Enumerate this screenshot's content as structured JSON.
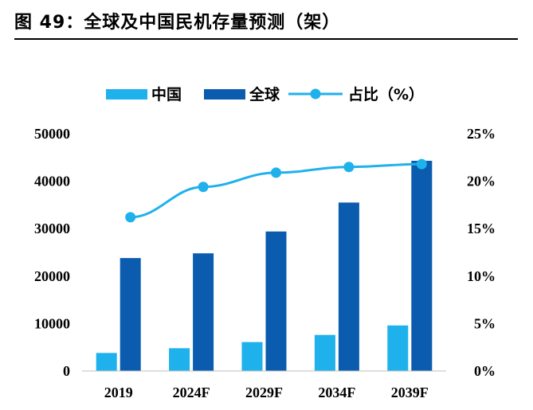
{
  "title": "图 49：全球及中国民机存量预测（架）",
  "chart_data": {
    "type": "bar",
    "categories": [
      "2019",
      "2024F",
      "2029F",
      "2034F",
      "2039F"
    ],
    "series": [
      {
        "name": "中国",
        "type": "bar",
        "axis": "left",
        "color": "#1fb1ec",
        "values": [
          3800,
          4800,
          6100,
          7600,
          9600
        ]
      },
      {
        "name": "全球",
        "type": "bar",
        "axis": "left",
        "color": "#0b5cae",
        "values": [
          23800,
          24800,
          29400,
          35500,
          44300
        ]
      },
      {
        "name": "占比（%）",
        "type": "line",
        "axis": "right",
        "color": "#1fb1ec",
        "values": [
          16.2,
          19.4,
          20.9,
          21.5,
          21.8
        ]
      }
    ],
    "y_left": {
      "min": 0,
      "max": 50000,
      "ticks": [
        "0",
        "10000",
        "20000",
        "30000",
        "40000",
        "50000"
      ]
    },
    "y_right": {
      "min": 0,
      "max": 25,
      "ticks": [
        "0%",
        "5%",
        "10%",
        "15%",
        "20%",
        "25%"
      ]
    },
    "legend_position": "top",
    "grid": false
  }
}
